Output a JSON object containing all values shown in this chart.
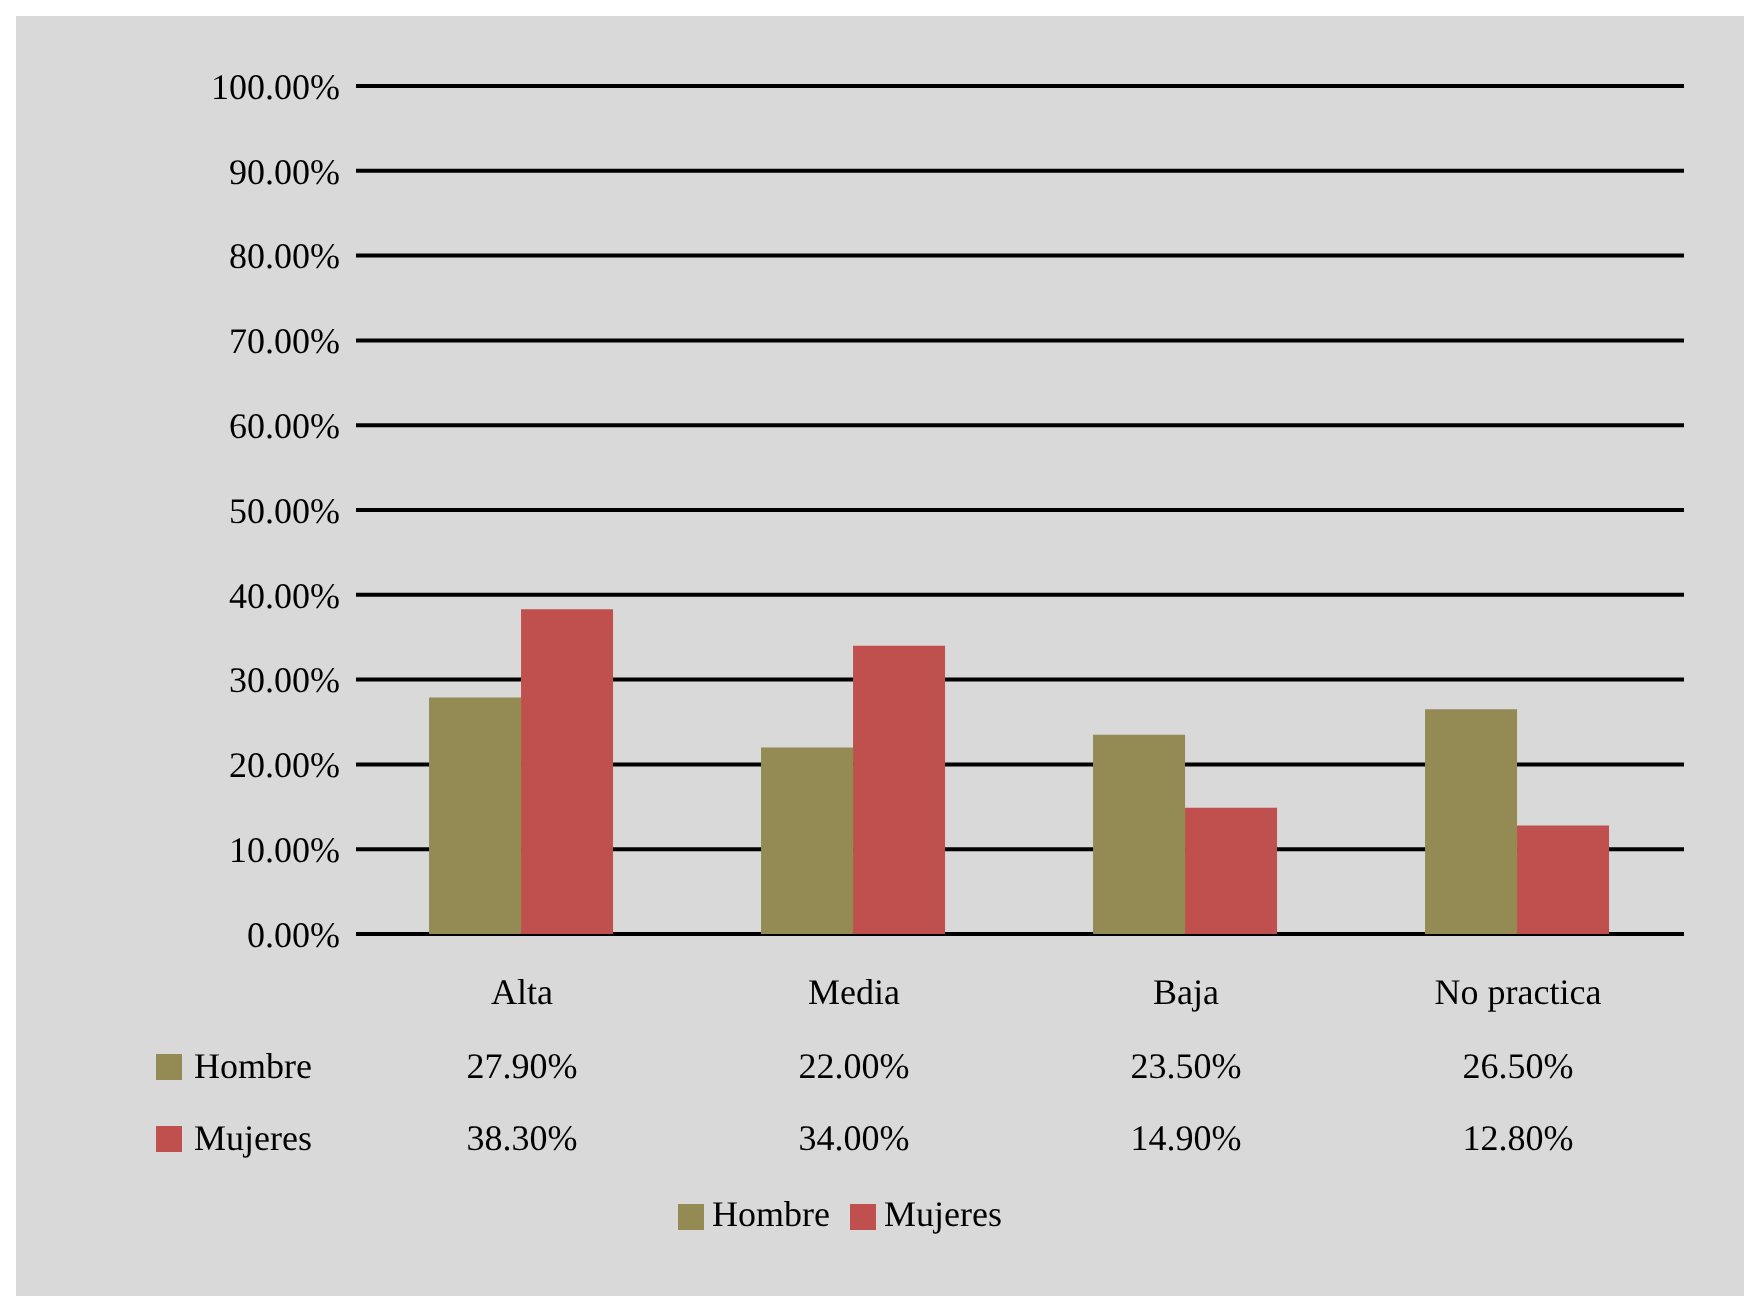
{
  "chart_data": {
    "type": "bar",
    "categories": [
      "Alta",
      "Media",
      "Baja",
      "No practica"
    ],
    "series": [
      {
        "name": "Hombre",
        "color": "#948a54",
        "values": [
          27.9,
          22.0,
          23.5,
          26.5
        ],
        "value_labels": [
          "27.90%",
          "22.00%",
          "23.50%",
          "26.50%"
        ]
      },
      {
        "name": "Mujeres",
        "color": "#c0504d",
        "values": [
          38.3,
          34.0,
          14.9,
          12.8
        ],
        "value_labels": [
          "38.30%",
          "34.00%",
          "14.90%",
          "12.80%"
        ]
      }
    ],
    "ylim": [
      0,
      100
    ],
    "yticks": [
      {
        "value": 0,
        "label": "0.00%"
      },
      {
        "value": 10,
        "label": "10.00%"
      },
      {
        "value": 20,
        "label": "20.00%"
      },
      {
        "value": 30,
        "label": "30.00%"
      },
      {
        "value": 40,
        "label": "40.00%"
      },
      {
        "value": 50,
        "label": "50.00%"
      },
      {
        "value": 60,
        "label": "60.00%"
      },
      {
        "value": 70,
        "label": "70.00%"
      },
      {
        "value": 80,
        "label": "80.00%"
      },
      {
        "value": 90,
        "label": "90.00%"
      },
      {
        "value": 100,
        "label": "100.00%"
      }
    ],
    "grid": "y",
    "legend": "bottom"
  }
}
